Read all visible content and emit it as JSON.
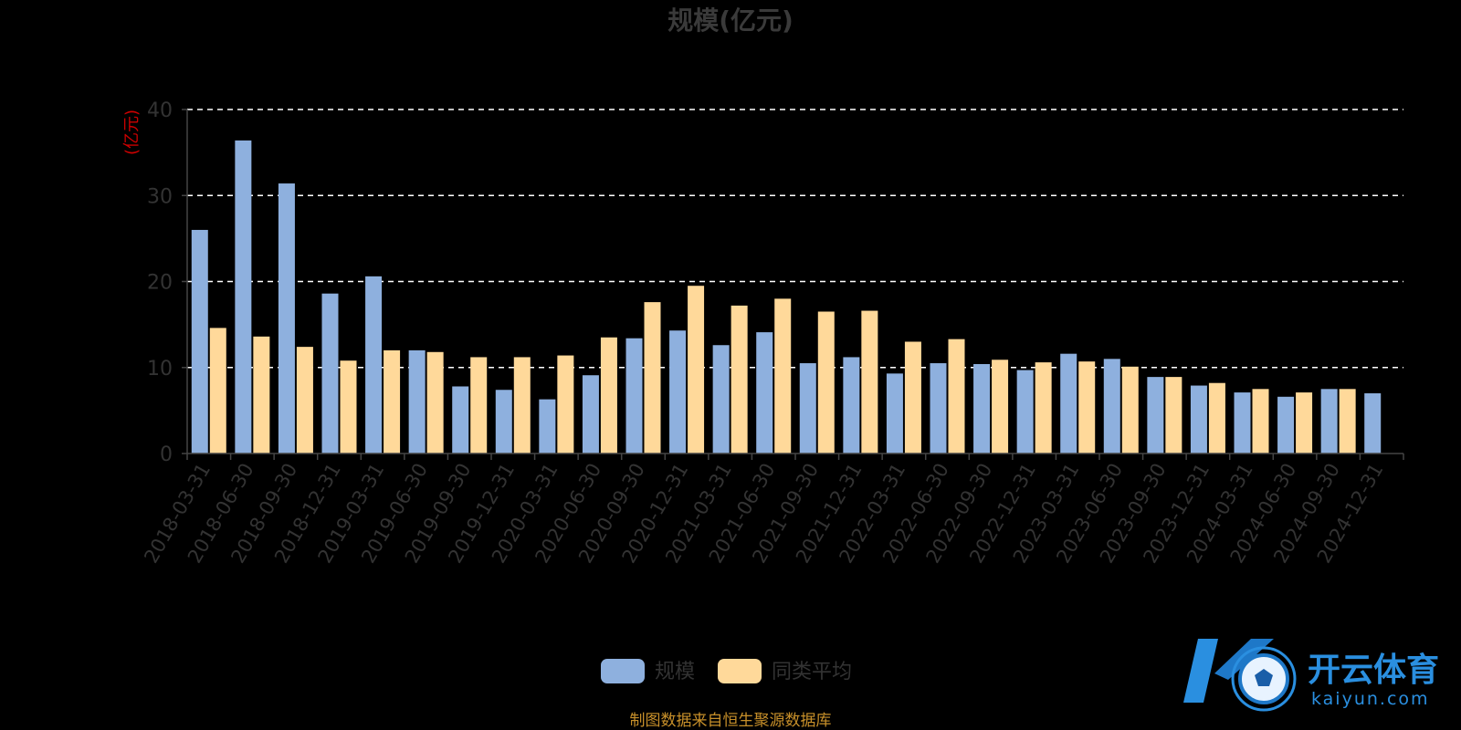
{
  "colors": {
    "series_a": "#8eb0de",
    "series_b": "#ffd99a",
    "grid": "#ffffff",
    "axis": "#444444",
    "unit": "#cc0000",
    "source": "#c8902a",
    "watermark": "#2a8fe0"
  },
  "watermark": {
    "brand": "开云体育",
    "domain": "kaiyun.com",
    "icon": "soccer-ball-k-logo-icon"
  },
  "source_note": "制图数据来自恒生聚源数据库",
  "chart_data": {
    "type": "bar",
    "title": "规模(亿元)",
    "ylabel": "(亿元)",
    "xlabel": "",
    "ylim": [
      0,
      40
    ],
    "yticks": [
      "0",
      "10",
      "20",
      "30",
      "40"
    ],
    "grid": true,
    "legend_position": "bottom-center",
    "categories": [
      "2018-03-31",
      "2018-06-30",
      "2018-09-30",
      "2018-12-31",
      "2019-03-31",
      "2019-06-30",
      "2019-09-30",
      "2019-12-31",
      "2020-03-31",
      "2020-06-30",
      "2020-09-30",
      "2020-12-31",
      "2021-03-31",
      "2021-06-30",
      "2021-09-30",
      "2021-12-31",
      "2022-03-31",
      "2022-06-30",
      "2022-09-30",
      "2022-12-31",
      "2023-03-31",
      "2023-06-30",
      "2023-09-30",
      "2023-12-31",
      "2024-03-31",
      "2024-06-30",
      "2024-09-30",
      "2024-12-31"
    ],
    "series": [
      {
        "name": "规模",
        "values": [
          26.0,
          36.4,
          31.4,
          18.6,
          20.6,
          12.0,
          7.8,
          7.4,
          6.3,
          9.1,
          13.4,
          14.3,
          12.6,
          14.1,
          10.5,
          11.2,
          9.3,
          10.5,
          10.4,
          9.7,
          11.6,
          11.0,
          8.9,
          7.9,
          7.1,
          6.6,
          7.5,
          7.0
        ]
      },
      {
        "name": "同类平均",
        "values": [
          14.6,
          13.6,
          12.4,
          10.8,
          12.0,
          11.8,
          11.2,
          11.2,
          11.4,
          13.5,
          17.6,
          19.5,
          17.2,
          18.0,
          16.5,
          16.6,
          13.0,
          13.3,
          10.9,
          10.6,
          10.7,
          10.1,
          8.9,
          8.2,
          7.5,
          7.1,
          7.5,
          null
        ]
      }
    ]
  }
}
